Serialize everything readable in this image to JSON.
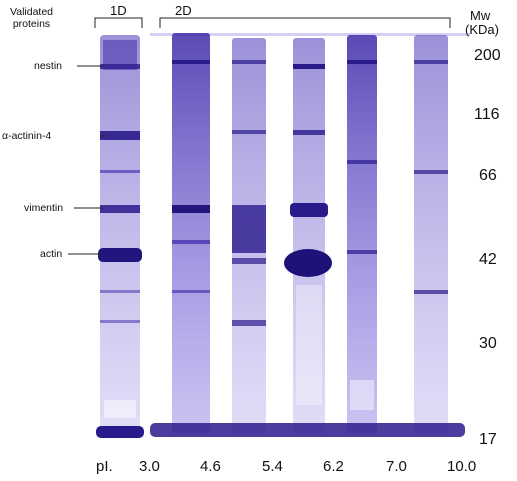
{
  "header": {
    "validated_label": "Validated\nproteins",
    "one_d_label": "1D",
    "two_d_label": "2D",
    "mw_label": "Mw",
    "kda_label": "(KDa)"
  },
  "proteins": [
    {
      "name": "nestin"
    },
    {
      "name": "α-actinin-4"
    },
    {
      "name": "vimentin"
    },
    {
      "name": "actin"
    }
  ],
  "mw_markers": [
    "200",
    "116",
    "66",
    "42",
    "30",
    "17"
  ],
  "pi_label": "pI.",
  "pi_values": [
    "3.0",
    "4.6",
    "5.4",
    "6.2",
    "7.0",
    "10.0"
  ],
  "colors": {
    "band_dark": "#2a1b8c",
    "band_mid": "#5a46c8",
    "band_light": "#a89ae6",
    "background": "#ffffff"
  }
}
